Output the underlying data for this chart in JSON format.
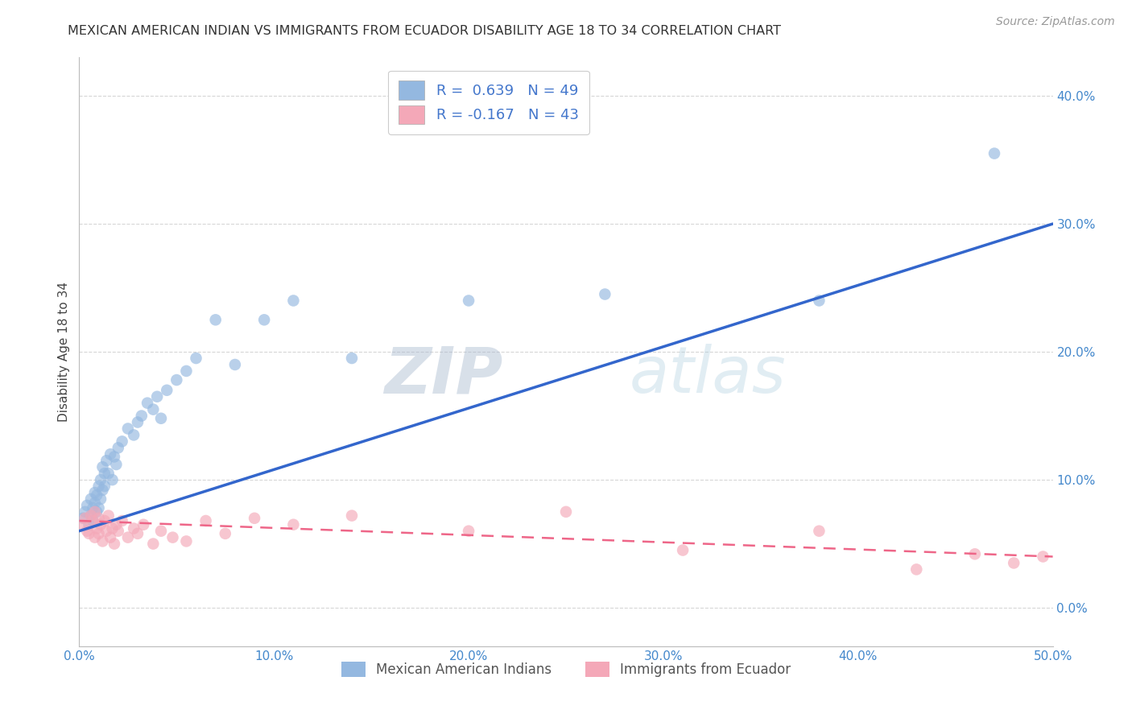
{
  "title": "MEXICAN AMERICAN INDIAN VS IMMIGRANTS FROM ECUADOR DISABILITY AGE 18 TO 34 CORRELATION CHART",
  "source": "Source: ZipAtlas.com",
  "ylabel": "Disability Age 18 to 34",
  "xlim": [
    0.0,
    0.5
  ],
  "ylim": [
    -0.03,
    0.43
  ],
  "xticks": [
    0.0,
    0.1,
    0.2,
    0.3,
    0.4,
    0.5
  ],
  "yticks": [
    0.0,
    0.1,
    0.2,
    0.3,
    0.4
  ],
  "ytick_labels_right": [
    "0.0%",
    "10.0%",
    "20.0%",
    "30.0%",
    "40.0%"
  ],
  "xtick_labels": [
    "0.0%",
    "10.0%",
    "20.0%",
    "30.0%",
    "40.0%",
    "50.0%"
  ],
  "blue_R": 0.639,
  "blue_N": 49,
  "pink_R": -0.167,
  "pink_N": 43,
  "blue_color": "#94B8E0",
  "pink_color": "#F4A8B8",
  "blue_line_color": "#3366CC",
  "pink_line_color": "#EE6688",
  "watermark_zip": "ZIP",
  "watermark_atlas": "atlas",
  "legend_label_blue": "Mexican American Indians",
  "legend_label_pink": "Immigrants from Ecuador",
  "blue_scatter_x": [
    0.002,
    0.003,
    0.004,
    0.005,
    0.006,
    0.006,
    0.007,
    0.007,
    0.008,
    0.008,
    0.009,
    0.009,
    0.01,
    0.01,
    0.011,
    0.011,
    0.012,
    0.012,
    0.013,
    0.013,
    0.014,
    0.015,
    0.016,
    0.017,
    0.018,
    0.019,
    0.02,
    0.022,
    0.025,
    0.028,
    0.03,
    0.032,
    0.035,
    0.038,
    0.04,
    0.042,
    0.045,
    0.05,
    0.055,
    0.06,
    0.07,
    0.08,
    0.095,
    0.11,
    0.14,
    0.2,
    0.27,
    0.38,
    0.47
  ],
  "blue_scatter_y": [
    0.07,
    0.075,
    0.08,
    0.065,
    0.072,
    0.085,
    0.068,
    0.078,
    0.082,
    0.09,
    0.075,
    0.088,
    0.078,
    0.095,
    0.085,
    0.1,
    0.092,
    0.11,
    0.095,
    0.105,
    0.115,
    0.105,
    0.12,
    0.1,
    0.118,
    0.112,
    0.125,
    0.13,
    0.14,
    0.135,
    0.145,
    0.15,
    0.16,
    0.155,
    0.165,
    0.148,
    0.17,
    0.178,
    0.185,
    0.195,
    0.225,
    0.19,
    0.225,
    0.24,
    0.195,
    0.24,
    0.245,
    0.24,
    0.355
  ],
  "pink_scatter_x": [
    0.002,
    0.003,
    0.004,
    0.005,
    0.006,
    0.007,
    0.008,
    0.008,
    0.009,
    0.01,
    0.01,
    0.011,
    0.012,
    0.013,
    0.014,
    0.015,
    0.016,
    0.017,
    0.018,
    0.019,
    0.02,
    0.022,
    0.025,
    0.028,
    0.03,
    0.033,
    0.038,
    0.042,
    0.048,
    0.055,
    0.065,
    0.075,
    0.09,
    0.11,
    0.14,
    0.2,
    0.25,
    0.31,
    0.38,
    0.43,
    0.46,
    0.48,
    0.495
  ],
  "pink_scatter_y": [
    0.065,
    0.07,
    0.06,
    0.058,
    0.072,
    0.068,
    0.055,
    0.075,
    0.062,
    0.07,
    0.058,
    0.065,
    0.052,
    0.068,
    0.06,
    0.072,
    0.055,
    0.062,
    0.05,
    0.065,
    0.06,
    0.068,
    0.055,
    0.062,
    0.058,
    0.065,
    0.05,
    0.06,
    0.055,
    0.052,
    0.068,
    0.058,
    0.07,
    0.065,
    0.072,
    0.06,
    0.075,
    0.045,
    0.06,
    0.03,
    0.042,
    0.035,
    0.04
  ],
  "blue_line_x": [
    0.0,
    0.5
  ],
  "blue_line_y": [
    0.06,
    0.3
  ],
  "pink_line_x": [
    0.0,
    0.5
  ],
  "pink_line_y": [
    0.068,
    0.04
  ],
  "title_fontsize": 11.5,
  "axis_label_fontsize": 11,
  "tick_fontsize": 11,
  "source_fontsize": 10,
  "background_color": "#FFFFFF",
  "grid_color": "#CCCCCC",
  "grid_alpha": 0.8
}
